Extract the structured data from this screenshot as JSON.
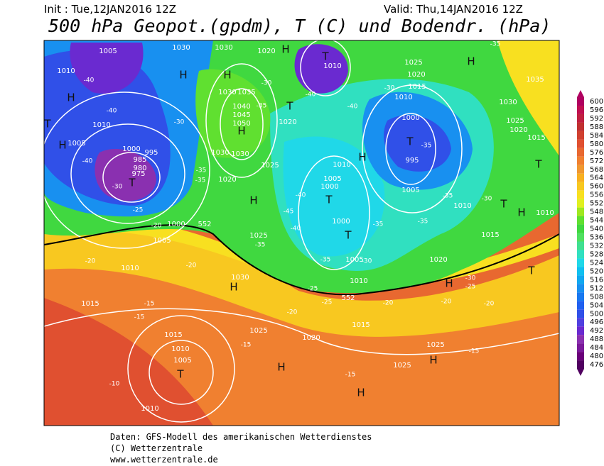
{
  "header": {
    "init": "Init : Tue,12JAN2016 12Z",
    "valid": "Valid: Thu,14JAN2016 12Z",
    "title": "500 hPa Geopot.(gpdm), T (C) und Bodendr. (hPa)"
  },
  "colorbar": {
    "levels": [
      600,
      596,
      592,
      588,
      584,
      580,
      576,
      572,
      568,
      564,
      560,
      556,
      552,
      548,
      544,
      540,
      536,
      532,
      528,
      524,
      520,
      516,
      512,
      508,
      504,
      500,
      496,
      492,
      488,
      484,
      480,
      476
    ],
    "colors": [
      "#b00060",
      "#c01050",
      "#c02040",
      "#c03030",
      "#d04030",
      "#e05030",
      "#e86830",
      "#f08030",
      "#f09830",
      "#f8b020",
      "#f8c820",
      "#f8e020",
      "#e0f020",
      "#a0e820",
      "#60e030",
      "#40d840",
      "#50e060",
      "#40e090",
      "#30e0c0",
      "#20d8e8",
      "#10c0f0",
      "#10a8f0",
      "#1890f0",
      "#1878f0",
      "#2060f0",
      "#3050e8",
      "#5040e0",
      "#6a2ad0",
      "#8a30b0",
      "#7a1a9a",
      "#6a007a",
      "#500060"
    ]
  },
  "map": {
    "labels": [
      "1005",
      "1030",
      "1030",
      "1020",
      "H",
      "T",
      "1010",
      "-35",
      "1010",
      "-40",
      "H",
      "H",
      "H",
      "1025",
      "1020",
      "H",
      "1035",
      "1015",
      "-30",
      "1010",
      "-40",
      "1030",
      "1035",
      "-30",
      "T",
      "-40",
      "1030",
      "-40",
      "T",
      "1040",
      "-35",
      "1045",
      "1050",
      "H",
      "1020",
      "1000",
      "1025",
      "1020",
      "1010",
      "-30",
      "1015",
      "1005",
      "T",
      "-35",
      "H",
      "1000",
      "995",
      "1030",
      "1030",
      "H",
      "995",
      "T",
      "985",
      "-40",
      "980",
      "1025",
      "1010",
      "975",
      "1020",
      "1005",
      "-35",
      "-35",
      "T",
      "-30",
      "1000",
      "1005",
      "-40",
      "T",
      "-35",
      "-30",
      "H",
      "1010",
      "T",
      "-25",
      "H",
      "1010",
      "-45",
      "1000",
      "-20",
      "1000",
      "-40",
      "-35",
      "-35",
      "T",
      "1025",
      "1015",
      "1005",
      "-35",
      "-20",
      "1005",
      "-35",
      "-30",
      "1020",
      "1010",
      "-20",
      "T",
      "1030",
      "H",
      "-25",
      "1010",
      "552",
      "552",
      "-30",
      "-25",
      "H",
      "-20",
      "-20",
      "-20",
      "-25",
      "1015",
      "-15",
      "-20",
      "1015",
      "-15",
      "1015",
      "1025",
      "1020",
      "-15",
      "1010",
      "1025",
      "-15",
      "H",
      "1005",
      "H",
      "1025",
      "T",
      "-15",
      "-10",
      "H",
      "1010"
    ]
  },
  "footer": {
    "line1": "Daten: GFS-Modell des amerikanischen Wetterdienstes",
    "line2": "(C) Wetterzentrale",
    "line3": "www.wetterzentrale.de"
  }
}
